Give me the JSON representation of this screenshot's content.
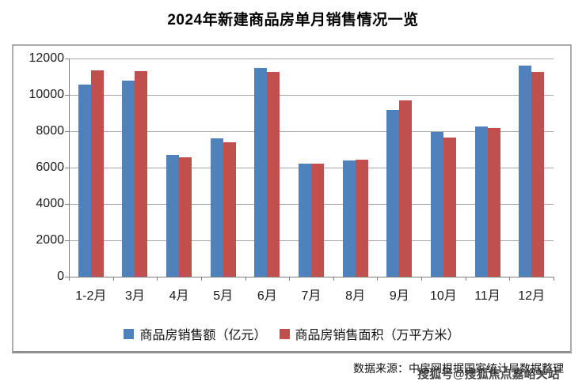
{
  "title": "2024年新建商品房单月销售情况一览",
  "chart_data": {
    "type": "bar",
    "title": "2024年新建商品房单月销售情况一览",
    "categories": [
      "1-2月",
      "3月",
      "4月",
      "5月",
      "6月",
      "7月",
      "8月",
      "9月",
      "10月",
      "11月",
      "12月"
    ],
    "series": [
      {
        "name": "商品房销售额（亿元）",
        "color": "#4F81BD",
        "values": [
          10566,
          10789,
          6712,
          7598,
          11468,
          6197,
          6393,
          9157,
          7975,
          8270,
          11625
        ]
      },
      {
        "name": "商品房销售面积（万平方米）",
        "color": "#C0504D",
        "values": [
          11369,
          11299,
          6584,
          7390,
          11274,
          6233,
          6453,
          9682,
          7646,
          8188,
          11267
        ]
      }
    ],
    "xlabel": "",
    "ylabel": "",
    "ylim": [
      0,
      12000
    ],
    "ytick_step": 2000,
    "grid": true,
    "legend_position": "bottom-center"
  },
  "footer": {
    "source": "数据来源：中房网根据国家统计局数据整理",
    "watermark": "搜狐号@搜狐焦点嘉峪关站"
  },
  "colors": {
    "series_blue": "#4F81BD",
    "series_red": "#C0504D",
    "gridline": "#A6A6A6",
    "axis": "#7F7F7F",
    "frame_border": "#ABABAB"
  }
}
